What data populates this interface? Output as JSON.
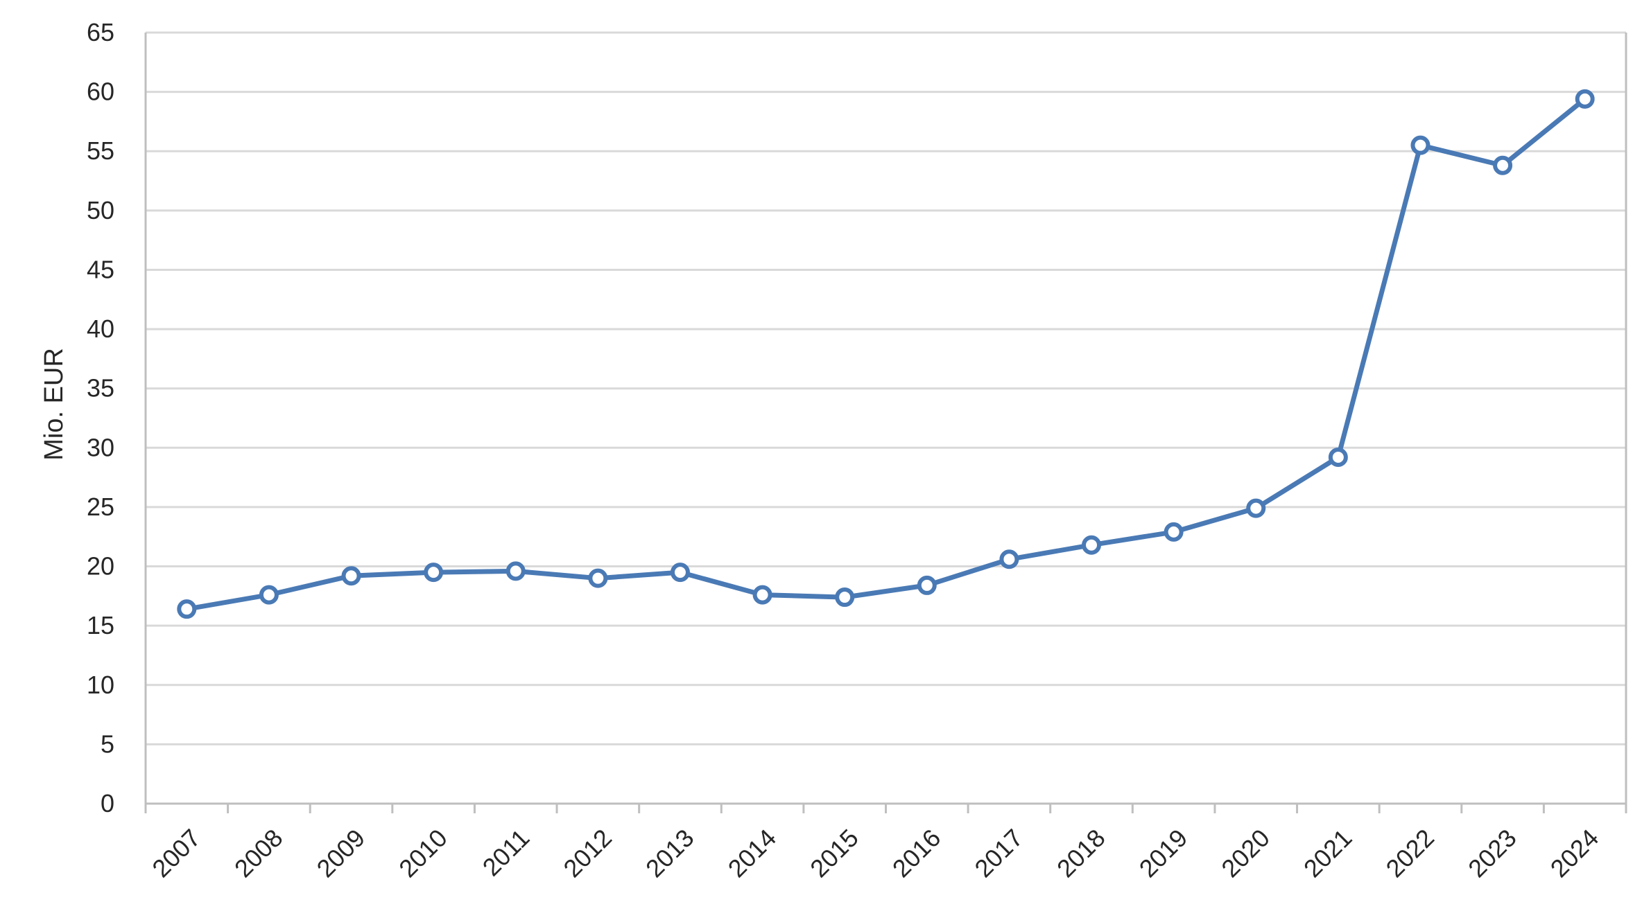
{
  "chart_data": {
    "type": "line",
    "title": "",
    "xlabel": "",
    "ylabel": "Mio. EUR",
    "categories": [
      "2007",
      "2008",
      "2009",
      "2010",
      "2011",
      "2012",
      "2013",
      "2014",
      "2015",
      "2016",
      "2017",
      "2018",
      "2019",
      "2020",
      "2021",
      "2022",
      "2023",
      "2024"
    ],
    "series": [
      {
        "values": [
          16.4,
          17.6,
          19.2,
          19.5,
          19.6,
          19.0,
          19.5,
          17.6,
          17.4,
          18.4,
          20.6,
          21.8,
          22.9,
          24.9,
          29.2,
          55.5,
          53.8,
          59.4
        ]
      }
    ],
    "ylim": [
      0,
      65
    ],
    "yticks": [
      0,
      5,
      10,
      15,
      20,
      25,
      30,
      35,
      40,
      45,
      50,
      55,
      60,
      65
    ],
    "grid": "horizontal",
    "legend": "none",
    "colors": {
      "line": "#4a7ab5",
      "marker_fill": "#ffffff",
      "grid": "#d9d9d9",
      "axis": "#bfbfbf",
      "text": "#262626"
    }
  }
}
